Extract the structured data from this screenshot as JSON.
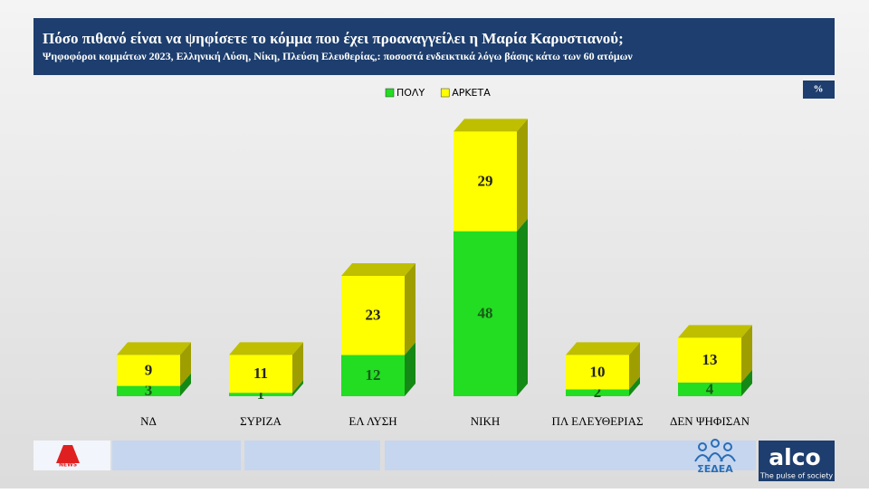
{
  "chart_data": {
    "type": "stacked-bar-3d",
    "title": "Πόσο πιθανό είναι να ψηφίσετε το κόμμα που έχει προαναγγείλει η Μαρία Καρυστιανού;",
    "subtitle": "Ψηφοφόροι κομμάτων 2023, Ελληνική Λύση, Νίκη, Πλεύση Ελευθερίας,: ποσοστά ενδεικτικά λόγω βάσης κάτω των 60 ατόμων",
    "badge": "%",
    "categories": [
      "ΝΔ",
      "ΣΥΡΙΖΑ",
      "ΕΛ ΛΥΣΗ",
      "ΝΙΚΗ",
      "ΠΛ ΕΛΕΥΘΕΡΙΑΣ",
      "ΔΕΝ ΨΗΦΙΣΑΝ"
    ],
    "series": [
      {
        "name": "ΠΟΛΥ",
        "color": "#22dd22",
        "values": [
          3,
          1,
          12,
          48,
          2,
          4
        ]
      },
      {
        "name": "ΑΡΚΕΤΑ",
        "color": "#ffff00",
        "values": [
          9,
          11,
          23,
          29,
          10,
          13
        ]
      }
    ]
  },
  "footer": {
    "channel": "NEWS",
    "pollster": "ΣΕΔΕΑ",
    "brand": "alco",
    "tagline": "The pulse of society"
  }
}
